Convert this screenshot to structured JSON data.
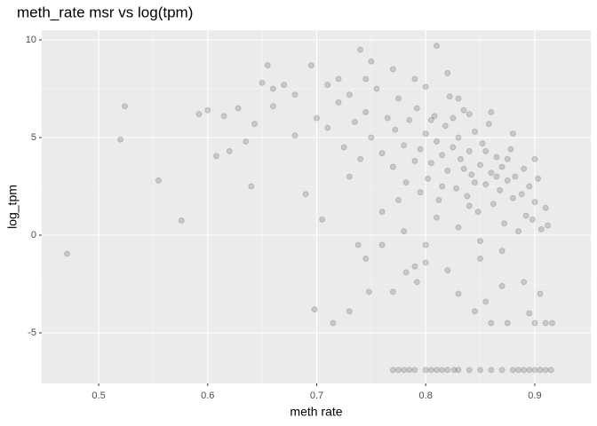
{
  "chart_data": {
    "type": "scatter",
    "title": "meth_rate msr vs log(tpm)",
    "x_label": "meth rate",
    "y_label": "log_tpm",
    "color": "#000000",
    "x": [
      0.471,
      0.52,
      0.524,
      0.555,
      0.576,
      0.592,
      0.6,
      0.608,
      0.615,
      0.62,
      0.628,
      0.635,
      0.64,
      0.643,
      0.65,
      0.655,
      0.66,
      0.67,
      0.68,
      0.69,
      0.695,
      0.698,
      0.705,
      0.715,
      0.73,
      0.738,
      0.745,
      0.748,
      0.74,
      0.745,
      0.76,
      0.77,
      0.782,
      0.79,
      0.81,
      0.792,
      0.8,
      0.82,
      0.83,
      0.845,
      0.85,
      0.855,
      0.86,
      0.87,
      0.875,
      0.89,
      0.895,
      0.9,
      0.905,
      0.91,
      0.916,
      0.912,
      0.77,
      0.775,
      0.78,
      0.785,
      0.79,
      0.8,
      0.805,
      0.81,
      0.815,
      0.82,
      0.826,
      0.83,
      0.84,
      0.85,
      0.86,
      0.87,
      0.88,
      0.885,
      0.89,
      0.895,
      0.9,
      0.905,
      0.91,
      0.915,
      0.7,
      0.71,
      0.72,
      0.725,
      0.73,
      0.735,
      0.74,
      0.745,
      0.75,
      0.755,
      0.76,
      0.765,
      0.77,
      0.772,
      0.775,
      0.78,
      0.782,
      0.785,
      0.79,
      0.792,
      0.795,
      0.8,
      0.802,
      0.805,
      0.808,
      0.81,
      0.812,
      0.815,
      0.818,
      0.82,
      0.822,
      0.825,
      0.828,
      0.83,
      0.832,
      0.835,
      0.838,
      0.84,
      0.842,
      0.845,
      0.848,
      0.85,
      0.852,
      0.855,
      0.858,
      0.86,
      0.862,
      0.865,
      0.868,
      0.87,
      0.872,
      0.875,
      0.878,
      0.88,
      0.882,
      0.885,
      0.888,
      0.89,
      0.892,
      0.895,
      0.898,
      0.9,
      0.903,
      0.906,
      0.91,
      0.76,
      0.78,
      0.8,
      0.79,
      0.8,
      0.82,
      0.83,
      0.84,
      0.77,
      0.75,
      0.72,
      0.68,
      0.66,
      0.71,
      0.73,
      0.81,
      0.83,
      0.85,
      0.87,
      0.84,
      0.86,
      0.88,
      0.9,
      0.815,
      0.795,
      0.775,
      0.805,
      0.825,
      0.835,
      0.845,
      0.855,
      0.865,
      0.875
    ],
    "y": [
      -0.95,
      4.9,
      6.6,
      2.8,
      0.75,
      6.2,
      6.4,
      4.05,
      6.1,
      4.3,
      6.5,
      4.8,
      2.5,
      5.7,
      7.8,
      8.7,
      6.6,
      7.7,
      5.1,
      2.1,
      8.7,
      -3.8,
      0.8,
      -4.5,
      -3.9,
      -0.5,
      -1.2,
      -2.9,
      9.5,
      8.0,
      -0.5,
      -2.9,
      -1.9,
      -1.6,
      9.7,
      -2.4,
      -1.4,
      -1.8,
      -3.0,
      -3.9,
      -1.2,
      -3.4,
      -4.5,
      -2.6,
      -4.5,
      -2.4,
      -4.0,
      -4.5,
      -3.0,
      -4.5,
      -4.5,
      0.5,
      -6.9,
      -6.9,
      -6.9,
      -6.9,
      -6.9,
      -6.9,
      -6.9,
      -6.9,
      -6.9,
      -6.9,
      -6.9,
      -6.9,
      -6.9,
      -6.9,
      -6.9,
      -6.9,
      -6.9,
      -6.9,
      -6.9,
      -6.9,
      -6.9,
      -6.9,
      -6.9,
      -6.9,
      6.0,
      5.5,
      6.8,
      4.5,
      7.2,
      5.8,
      3.9,
      6.3,
      5.0,
      7.5,
      4.2,
      6.0,
      3.5,
      5.4,
      7.0,
      4.6,
      2.7,
      5.9,
      3.8,
      6.5,
      4.4,
      5.2,
      2.9,
      3.7,
      6.1,
      4.8,
      1.8,
      4.1,
      5.6,
      3.3,
      7.1,
      4.5,
      2.4,
      5.0,
      3.9,
      6.4,
      2.0,
      4.3,
      3.1,
      5.3,
      1.2,
      3.6,
      4.7,
      2.6,
      5.7,
      3.2,
      1.6,
      4.0,
      2.3,
      3.5,
      0.6,
      2.8,
      4.4,
      1.9,
      3.0,
      0.2,
      2.1,
      3.4,
      1.0,
      2.5,
      0.8,
      1.7,
      2.9,
      0.3,
      1.4,
      1.2,
      0.2,
      -0.5,
      8.0,
      7.6,
      8.3,
      7.0,
      6.2,
      8.5,
      8.9,
      8.0,
      7.2,
      7.5,
      7.7,
      3.0,
      0.9,
      0.4,
      -0.3,
      -0.8,
      1.5,
      6.3,
      5.2,
      3.9,
      2.5,
      2.2,
      1.8,
      5.9,
      6.0,
      3.4,
      2.7,
      4.3,
      3.0,
      3.9
    ],
    "xlim": [
      0.4478,
      0.9514
    ],
    "ylim": [
      -7.59,
      10.5
    ],
    "xticks": [
      0.5,
      0.6,
      0.7,
      0.8,
      0.9
    ],
    "yticks": [
      -5,
      0,
      5,
      10
    ],
    "grid": true
  }
}
